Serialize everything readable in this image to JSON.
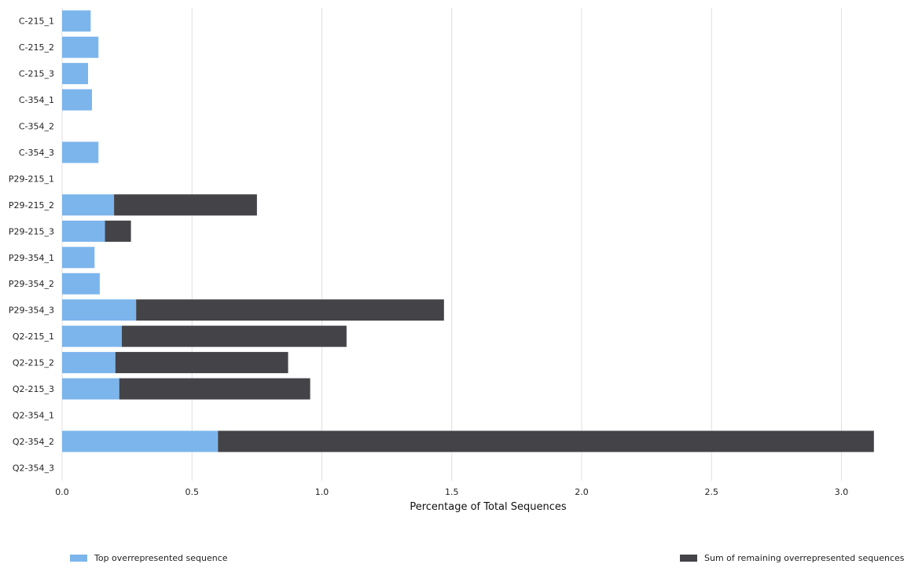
{
  "chart_data": {
    "type": "bar",
    "orientation": "horizontal",
    "stacked": true,
    "title": "",
    "xlabel": "Percentage of Total Sequences",
    "ylabel": "",
    "xlim": [
      0,
      3.15
    ],
    "xticks": [
      "0.0",
      "0.5",
      "1.0",
      "1.5",
      "2.0",
      "2.5",
      "3.0"
    ],
    "grid": "vertical",
    "legend_position": "bottom",
    "categories": [
      "C-215_1",
      "C-215_2",
      "C-215_3",
      "C-354_1",
      "C-354_2",
      "C-354_3",
      "P29-215_1",
      "P29-215_2",
      "P29-215_3",
      "P29-354_1",
      "P29-354_2",
      "P29-354_3",
      "Q2-215_1",
      "Q2-215_2",
      "Q2-215_3",
      "Q2-354_1",
      "Q2-354_2",
      "Q2-354_3"
    ],
    "series": [
      {
        "name": "Top overrepresented sequence",
        "color": "#7cb5ec",
        "values": [
          0.11,
          0.14,
          0.1,
          0.115,
          0,
          0.14,
          0,
          0.2,
          0.165,
          0.125,
          0.145,
          0.285,
          0.23,
          0.205,
          0.22,
          0,
          0.6,
          0
        ]
      },
      {
        "name": "Sum of remaining overrepresented sequences",
        "color": "#434348",
        "values": [
          0,
          0,
          0,
          0,
          0,
          0,
          0,
          0.55,
          0.1,
          0,
          0,
          1.185,
          0.865,
          0.665,
          0.735,
          0,
          2.525,
          0
        ]
      }
    ]
  }
}
